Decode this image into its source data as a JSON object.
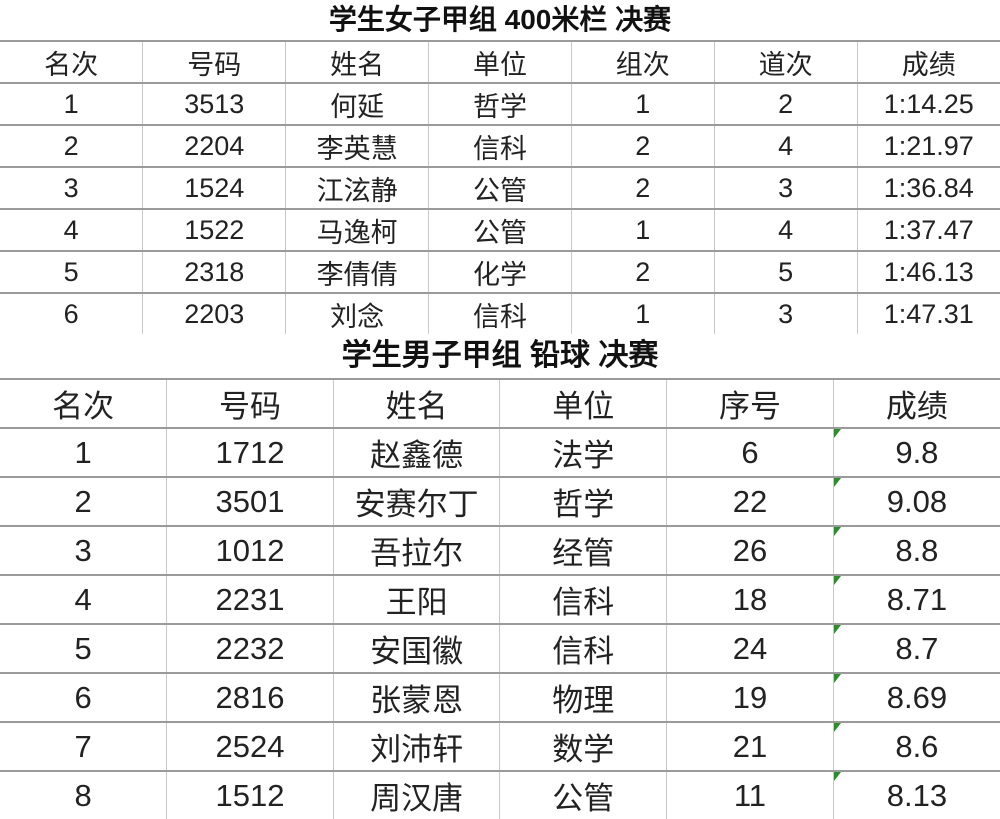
{
  "table1": {
    "title": "学生女子甲组 400米栏 决赛",
    "headers": [
      "名次",
      "号码",
      "姓名",
      "单位",
      "组次",
      "道次",
      "成绩"
    ],
    "rows": [
      [
        "1",
        "3513",
        "何延",
        "哲学",
        "1",
        "2",
        "1:14.25"
      ],
      [
        "2",
        "2204",
        "李英慧",
        "信科",
        "2",
        "4",
        "1:21.97"
      ],
      [
        "3",
        "1524",
        "江泫静",
        "公管",
        "2",
        "3",
        "1:36.84"
      ],
      [
        "4",
        "1522",
        "马逸柯",
        "公管",
        "1",
        "4",
        "1:37.47"
      ],
      [
        "5",
        "2318",
        "李倩倩",
        "化学",
        "2",
        "5",
        "1:46.13"
      ],
      [
        "6",
        "2203",
        "刘念",
        "信科",
        "1",
        "3",
        "1:47.31"
      ]
    ]
  },
  "table2": {
    "title": "学生男子甲组 铅球 决赛",
    "headers": [
      "名次",
      "号码",
      "姓名",
      "单位",
      "序号",
      "成绩"
    ],
    "rows": [
      [
        "1",
        "1712",
        "赵鑫德",
        "法学",
        "6",
        "9.8"
      ],
      [
        "2",
        "3501",
        "安赛尔丁",
        "哲学",
        "22",
        "9.08"
      ],
      [
        "3",
        "1012",
        "吾拉尔",
        "经管",
        "26",
        "8.8"
      ],
      [
        "4",
        "2231",
        "王阳",
        "信科",
        "18",
        "8.71"
      ],
      [
        "5",
        "2232",
        "安国徽",
        "信科",
        "24",
        "8.7"
      ],
      [
        "6",
        "2816",
        "张蒙恩",
        "物理",
        "19",
        "8.69"
      ],
      [
        "7",
        "2524",
        "刘沛轩",
        "数学",
        "21",
        "8.6"
      ],
      [
        "8",
        "1512",
        "周汉唐",
        "公管",
        "11",
        "8.13"
      ]
    ],
    "indicator_color": "#2e8b2e"
  }
}
